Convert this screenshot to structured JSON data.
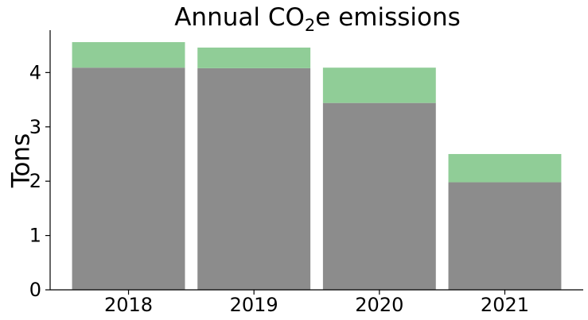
{
  "chart_data": {
    "type": "bar",
    "stacked": true,
    "title": {
      "prefix": "Annual CO",
      "subscript": "2",
      "suffix": "e emissions"
    },
    "ylabel": "Tons",
    "xlabel": "",
    "categories": [
      "2018",
      "2019",
      "2020",
      "2021"
    ],
    "series": [
      {
        "values": [
          4.09,
          4.08,
          3.44,
          1.98
        ],
        "color": "#8c8c8c"
      },
      {
        "values": [
          0.47,
          0.38,
          0.65,
          0.52
        ],
        "color": "#90cd97"
      }
    ],
    "ylim": [
      0,
      4.78
    ],
    "yticks": [
      0,
      1,
      2,
      3,
      4
    ],
    "grid": false
  }
}
